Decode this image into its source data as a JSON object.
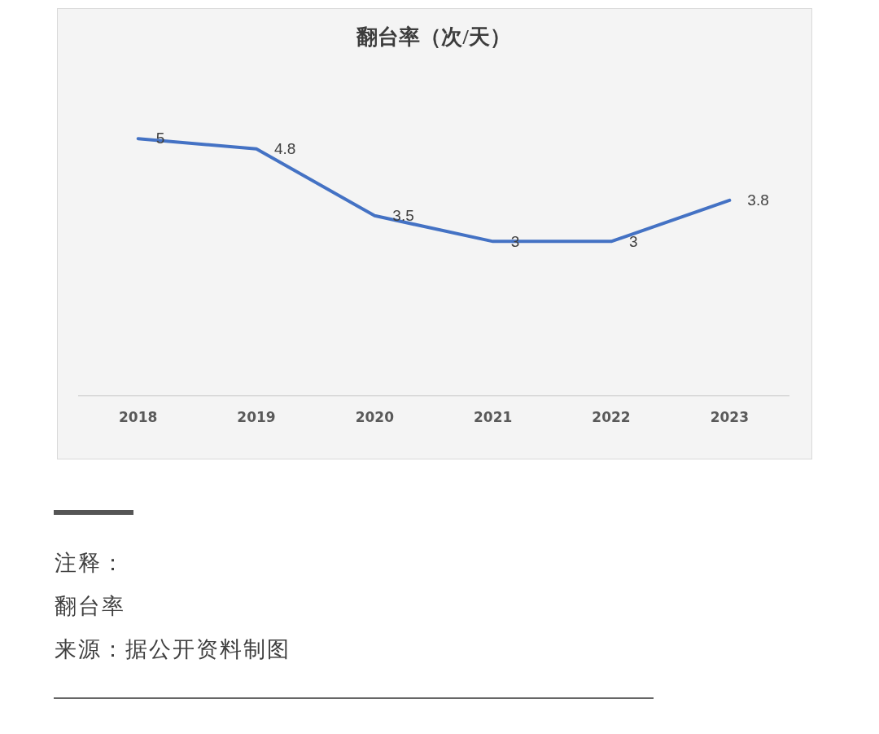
{
  "chart_data": {
    "type": "line",
    "title": "翻台率（次/天）",
    "categories": [
      "2018",
      "2019",
      "2020",
      "2021",
      "2022",
      "2023"
    ],
    "series": [
      {
        "color": "#4472c4",
        "values": [
          5,
          4.8,
          3.5,
          3,
          3,
          3.8
        ]
      }
    ],
    "tick_labels": "x",
    "data_labels": true,
    "legend": false,
    "grid": false,
    "marker": "none",
    "line_style": "solid",
    "annotations": [
      "注释：",
      "翻台率",
      "来源：据公开资料制图"
    ]
  }
}
